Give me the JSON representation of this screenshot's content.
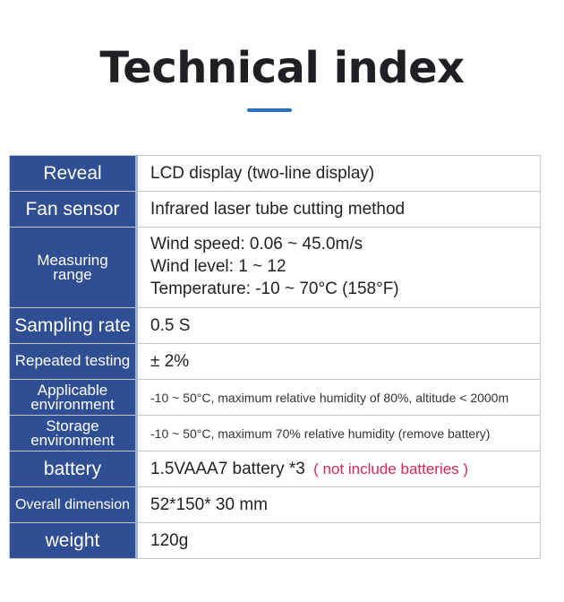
{
  "header": {
    "title": "Technical index",
    "accent_color": "#2b6fc0"
  },
  "table": {
    "label_bg": "#2f4f95",
    "rows": [
      {
        "label": "Reveal",
        "value": "LCD display (two-line display)"
      },
      {
        "label": "Fan sensor",
        "value": "Infrared laser tube cutting method"
      },
      {
        "label_lines": [
          "Measuring",
          "range"
        ],
        "value_lines": [
          "Wind speed: 0.06 ~ 45.0m/s",
          "Wind level: 1 ~ 12",
          "Temperature: -10 ~ 70°C (158°F)"
        ]
      },
      {
        "label": "Sampling rate",
        "value": "0.5 S"
      },
      {
        "label": "Repeated testing",
        "value": "± 2%"
      },
      {
        "label_lines": [
          "Applicable",
          "environment"
        ],
        "value": "-10 ~ 50°C, maximum relative humidity of 80%, altitude < 2000m"
      },
      {
        "label_lines": [
          "Storage",
          "environment"
        ],
        "value": "-10 ~ 50°C, maximum 70% relative humidity (remove battery)"
      },
      {
        "label": "battery",
        "value": "1.5VAAA7 battery *3",
        "note": "( not include batteries )",
        "note_color": "#d6275a"
      },
      {
        "label": "Overall dimension",
        "value": "52*150* 30 mm"
      },
      {
        "label": "weight",
        "value": "120g"
      }
    ]
  }
}
